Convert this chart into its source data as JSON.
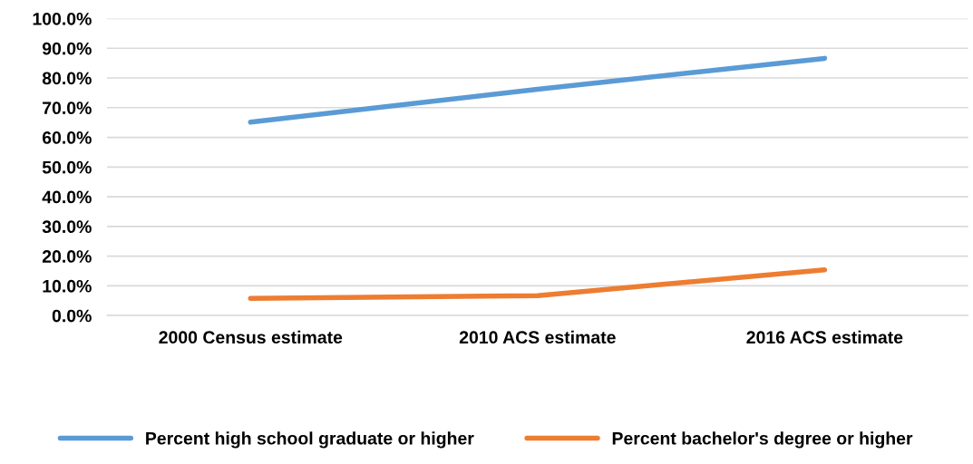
{
  "chart_data": {
    "type": "line",
    "categories": [
      "2000 Census estimate",
      "2010 ACS estimate",
      "2016 ACS estimate"
    ],
    "series": [
      {
        "name": "Percent high school graduate or higher",
        "color": "#5b9bd5",
        "values": [
          65.1,
          76.2,
          86.6
        ]
      },
      {
        "name": "Percent bachelor's degree or higher",
        "color": "#ed7d31",
        "values": [
          5.8,
          6.7,
          15.4
        ]
      }
    ],
    "ylim": [
      0,
      100
    ],
    "yticks": [
      {
        "value": 0,
        "label": "0.0%"
      },
      {
        "value": 10,
        "label": "10.0%"
      },
      {
        "value": 20,
        "label": "20.0%"
      },
      {
        "value": 30,
        "label": "30.0%"
      },
      {
        "value": 40,
        "label": "40.0%"
      },
      {
        "value": 50,
        "label": "50.0%"
      },
      {
        "value": 60,
        "label": "60.0%"
      },
      {
        "value": 70,
        "label": "70.0%"
      },
      {
        "value": 80,
        "label": "80.0%"
      },
      {
        "value": 90,
        "label": "90.0%"
      },
      {
        "value": 100,
        "label": "100.0%"
      }
    ],
    "grid": "y",
    "legend": "bottom",
    "marker": "none",
    "line_style": "solid"
  }
}
